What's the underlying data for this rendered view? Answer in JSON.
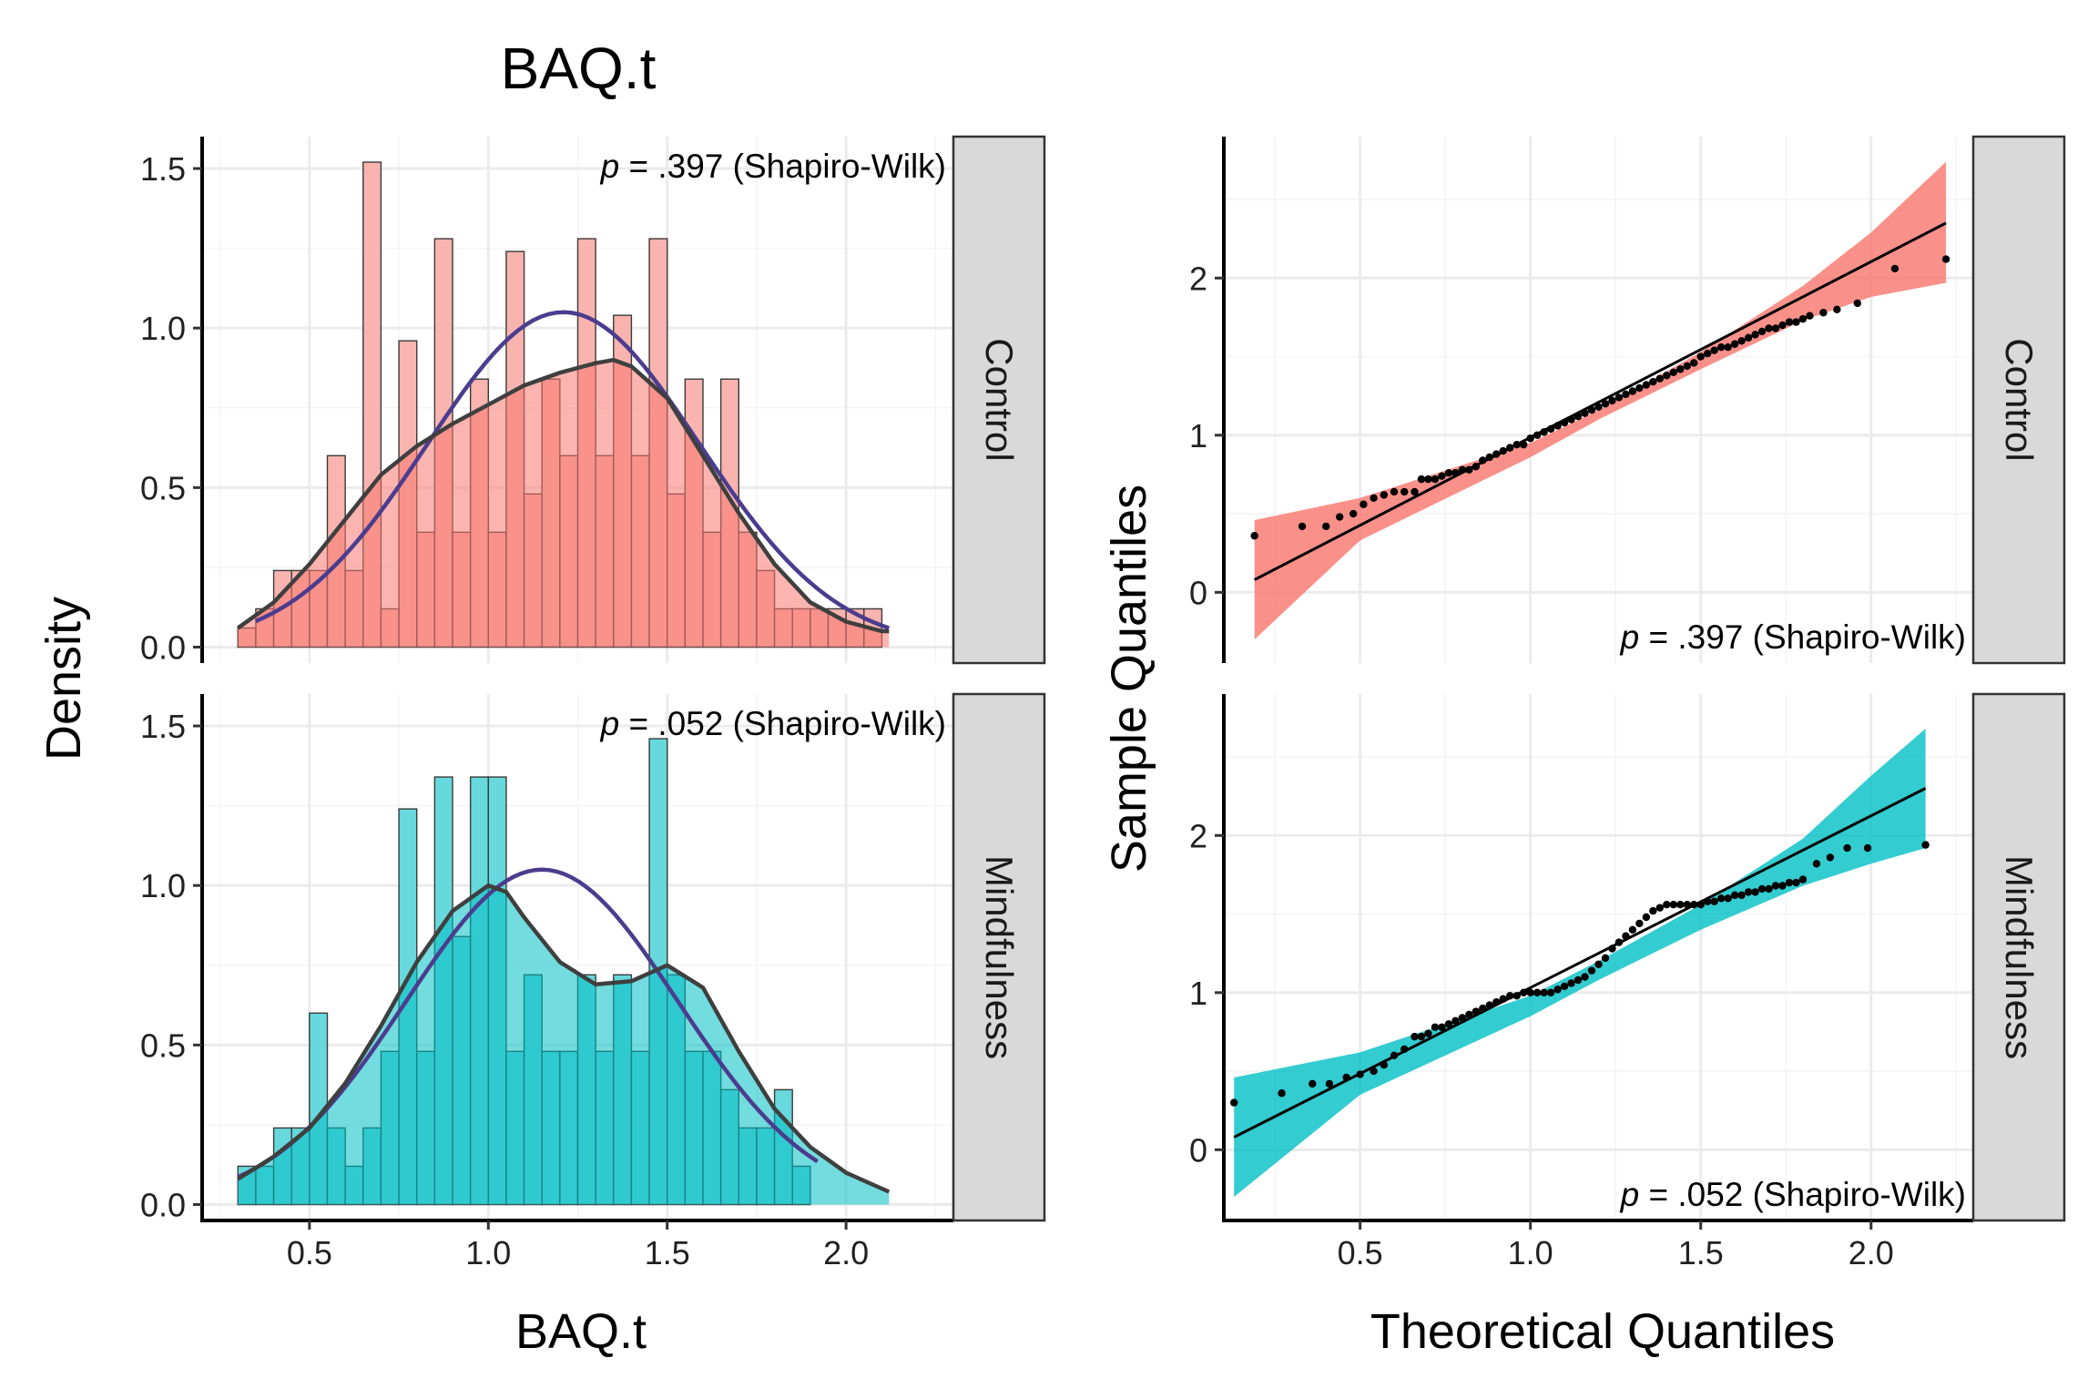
{
  "figure": {
    "title": "BAQ.t",
    "histogram_xlabel": "BAQ.t",
    "histogram_ylabel": "Density",
    "qq_xlabel": "Theoretical Quantiles",
    "qq_ylabel": "Sample Quantiles"
  },
  "colors": {
    "control_fill": "#F8766D",
    "control_fill_light": "#F9B0AB",
    "mindfulness_fill": "#00BFC4",
    "mindfulness_fill_light": "#5FD6D9",
    "normal_curve": "#4B3C8E",
    "density_curve": "#3F3F3F",
    "strip_bg": "#D9D9D9"
  },
  "chart_data": [
    {
      "type": "bar",
      "panel": "histogram",
      "group": "Control",
      "strip_label": "Control",
      "annotation": {
        "p_symbol": "p",
        "text": " = .397 (Shapiro-Wilk)"
      },
      "xlim": [
        0.2,
        2.3
      ],
      "ylim": [
        -0.05,
        1.6
      ],
      "x_ticks": [
        0.5,
        1.0,
        1.5,
        2.0
      ],
      "x_tick_labels": [
        "0.5",
        "1.0",
        "1.5",
        "2.0"
      ],
      "y_ticks": [
        0.0,
        0.5,
        1.0,
        1.5
      ],
      "y_tick_labels": [
        "0.0",
        "0.5",
        "1.0",
        "1.5"
      ],
      "bin_width": 0.05,
      "bins_start": 0.3,
      "heights": [
        0.06,
        0.12,
        0.24,
        0.24,
        0.24,
        0.6,
        0.24,
        1.52,
        0.12,
        0.96,
        0.36,
        1.28,
        0.36,
        0.84,
        0.36,
        1.24,
        0.48,
        0.84,
        0.6,
        1.28,
        0.6,
        1.04,
        0.6,
        1.28,
        0.48,
        0.84,
        0.36,
        0.84,
        0.36,
        0.24,
        0.12,
        0.12,
        0.12,
        0.12,
        0.12,
        0.12
      ],
      "normal_curve": {
        "mean": 1.21,
        "sd": 0.38,
        "from": 0.35,
        "to": 2.12
      },
      "density_curve": {
        "x": [
          0.3,
          0.4,
          0.5,
          0.6,
          0.7,
          0.8,
          0.9,
          1.0,
          1.1,
          1.2,
          1.3,
          1.35,
          1.4,
          1.5,
          1.6,
          1.7,
          1.8,
          1.9,
          2.0,
          2.1,
          2.12
        ],
        "y": [
          0.06,
          0.14,
          0.26,
          0.4,
          0.54,
          0.63,
          0.7,
          0.76,
          0.82,
          0.86,
          0.89,
          0.9,
          0.88,
          0.78,
          0.6,
          0.42,
          0.26,
          0.14,
          0.08,
          0.05,
          0.05
        ]
      }
    },
    {
      "type": "bar",
      "panel": "histogram",
      "group": "Mindfulness",
      "strip_label": "Mindfulness",
      "annotation": {
        "p_symbol": "p",
        "text": " = .052 (Shapiro-Wilk)"
      },
      "xlim": [
        0.2,
        2.3
      ],
      "ylim": [
        -0.05,
        1.6
      ],
      "x_ticks": [
        0.5,
        1.0,
        1.5,
        2.0
      ],
      "x_tick_labels": [
        "0.5",
        "1.0",
        "1.5",
        "2.0"
      ],
      "y_ticks": [
        0.0,
        0.5,
        1.0,
        1.5
      ],
      "y_tick_labels": [
        "0.0",
        "0.5",
        "1.0",
        "1.5"
      ],
      "bin_width": 0.05,
      "bins_start": 0.3,
      "heights": [
        0.12,
        0.12,
        0.24,
        0.24,
        0.6,
        0.24,
        0.12,
        0.24,
        0.48,
        1.24,
        0.48,
        1.34,
        0.84,
        1.34,
        1.34,
        0.48,
        0.72,
        0.48,
        0.48,
        0.72,
        0.48,
        0.72,
        0.48,
        1.46,
        0.72,
        0.48,
        0.48,
        0.36,
        0.24,
        0.24,
        0.36,
        0.12
      ],
      "normal_curve": {
        "mean": 1.15,
        "sd": 0.38,
        "from": 0.3,
        "to": 1.92
      },
      "density_curve": {
        "x": [
          0.3,
          0.4,
          0.5,
          0.6,
          0.7,
          0.8,
          0.9,
          1.0,
          1.05,
          1.1,
          1.2,
          1.3,
          1.4,
          1.5,
          1.6,
          1.7,
          1.8,
          1.9,
          2.0,
          2.1,
          2.12
        ],
        "y": [
          0.08,
          0.15,
          0.24,
          0.38,
          0.56,
          0.76,
          0.92,
          1.0,
          0.98,
          0.9,
          0.76,
          0.69,
          0.7,
          0.75,
          0.68,
          0.48,
          0.3,
          0.18,
          0.1,
          0.05,
          0.04
        ]
      }
    },
    {
      "type": "scatter",
      "panel": "qq",
      "group": "Control",
      "strip_label": "Control",
      "annotation": {
        "p_symbol": "p",
        "text": " = .397 (Shapiro-Wilk)"
      },
      "xlim": [
        0.1,
        2.3
      ],
      "ylim": [
        -0.45,
        2.9
      ],
      "x_ticks": [
        0.5,
        1.0,
        1.5,
        2.0
      ],
      "x_tick_labels": [
        "0.5",
        "1.0",
        "1.5",
        "2.0"
      ],
      "y_ticks": [
        0,
        1,
        2
      ],
      "y_tick_labels": [
        "0",
        "1",
        "2"
      ],
      "line": {
        "x": [
          0.19,
          2.22
        ],
        "y": [
          0.08,
          2.35
        ]
      },
      "band": {
        "x": [
          0.19,
          0.5,
          1.0,
          1.2,
          1.5,
          1.8,
          2.0,
          2.22
        ],
        "lower": [
          -0.3,
          0.33,
          0.86,
          1.1,
          1.42,
          1.73,
          1.88,
          1.97
        ],
        "upper": [
          0.46,
          0.6,
          0.95,
          1.16,
          1.53,
          1.95,
          2.29,
          2.74
        ]
      },
      "points_x": [
        0.19,
        0.33,
        0.4,
        0.44,
        0.48,
        0.51,
        0.54,
        0.57,
        0.6,
        0.63,
        0.66,
        0.68,
        0.7,
        0.72,
        0.74,
        0.76,
        0.78,
        0.8,
        0.82,
        0.84,
        0.86,
        0.88,
        0.9,
        0.92,
        0.94,
        0.96,
        0.98,
        1.0,
        1.02,
        1.04,
        1.06,
        1.08,
        1.1,
        1.12,
        1.14,
        1.16,
        1.18,
        1.2,
        1.22,
        1.24,
        1.26,
        1.28,
        1.3,
        1.32,
        1.34,
        1.36,
        1.38,
        1.4,
        1.42,
        1.44,
        1.46,
        1.48,
        1.5,
        1.52,
        1.54,
        1.56,
        1.58,
        1.6,
        1.62,
        1.64,
        1.66,
        1.68,
        1.7,
        1.72,
        1.74,
        1.76,
        1.78,
        1.8,
        1.82,
        1.86,
        1.9,
        1.96,
        2.07,
        2.22
      ],
      "points_y": [
        0.36,
        0.42,
        0.42,
        0.48,
        0.5,
        0.56,
        0.6,
        0.62,
        0.64,
        0.64,
        0.64,
        0.72,
        0.72,
        0.72,
        0.74,
        0.76,
        0.76,
        0.78,
        0.78,
        0.8,
        0.84,
        0.86,
        0.88,
        0.9,
        0.92,
        0.94,
        0.94,
        0.98,
        1.0,
        1.02,
        1.04,
        1.06,
        1.08,
        1.1,
        1.12,
        1.14,
        1.16,
        1.18,
        1.2,
        1.22,
        1.24,
        1.26,
        1.28,
        1.3,
        1.32,
        1.34,
        1.36,
        1.38,
        1.4,
        1.42,
        1.44,
        1.46,
        1.5,
        1.52,
        1.54,
        1.56,
        1.56,
        1.58,
        1.6,
        1.62,
        1.64,
        1.66,
        1.68,
        1.68,
        1.7,
        1.72,
        1.72,
        1.74,
        1.76,
        1.78,
        1.8,
        1.84,
        2.06,
        2.12
      ]
    },
    {
      "type": "scatter",
      "panel": "qq",
      "group": "Mindfulness",
      "strip_label": "Mindfulness",
      "annotation": {
        "p_symbol": "p",
        "text": " = .052 (Shapiro-Wilk)"
      },
      "xlim": [
        0.1,
        2.3
      ],
      "ylim": [
        -0.45,
        2.9
      ],
      "x_ticks": [
        0.5,
        1.0,
        1.5,
        2.0
      ],
      "x_tick_labels": [
        "0.5",
        "1.0",
        "1.5",
        "2.0"
      ],
      "y_ticks": [
        0,
        1,
        2
      ],
      "y_tick_labels": [
        "0",
        "1",
        "2"
      ],
      "line": {
        "x": [
          0.13,
          2.16
        ],
        "y": [
          0.08,
          2.3
        ]
      },
      "band": {
        "x": [
          0.13,
          0.5,
          1.0,
          1.2,
          1.5,
          1.8,
          2.0,
          2.16
        ],
        "lower": [
          -0.3,
          0.35,
          0.85,
          1.08,
          1.4,
          1.68,
          1.82,
          1.92
        ],
        "upper": [
          0.46,
          0.62,
          0.98,
          1.2,
          1.56,
          1.98,
          2.38,
          2.68
        ]
      },
      "points_x": [
        0.13,
        0.27,
        0.36,
        0.41,
        0.46,
        0.5,
        0.54,
        0.57,
        0.6,
        0.63,
        0.66,
        0.68,
        0.7,
        0.72,
        0.74,
        0.76,
        0.78,
        0.8,
        0.82,
        0.84,
        0.86,
        0.88,
        0.9,
        0.92,
        0.94,
        0.96,
        0.98,
        1.0,
        1.02,
        1.04,
        1.06,
        1.08,
        1.1,
        1.12,
        1.14,
        1.16,
        1.18,
        1.2,
        1.22,
        1.24,
        1.26,
        1.28,
        1.3,
        1.32,
        1.34,
        1.36,
        1.38,
        1.4,
        1.42,
        1.44,
        1.46,
        1.48,
        1.5,
        1.52,
        1.54,
        1.56,
        1.58,
        1.6,
        1.62,
        1.64,
        1.66,
        1.68,
        1.7,
        1.72,
        1.74,
        1.76,
        1.78,
        1.8,
        1.84,
        1.88,
        1.93,
        1.99,
        2.16
      ],
      "points_y": [
        0.3,
        0.36,
        0.42,
        0.42,
        0.46,
        0.48,
        0.5,
        0.54,
        0.6,
        0.64,
        0.72,
        0.72,
        0.74,
        0.78,
        0.78,
        0.8,
        0.82,
        0.84,
        0.86,
        0.88,
        0.9,
        0.92,
        0.94,
        0.96,
        0.98,
        0.98,
        1.0,
        1.0,
        1.0,
        1.0,
        1.0,
        1.02,
        1.04,
        1.06,
        1.08,
        1.1,
        1.14,
        1.18,
        1.22,
        1.28,
        1.32,
        1.36,
        1.4,
        1.44,
        1.48,
        1.52,
        1.54,
        1.56,
        1.56,
        1.56,
        1.56,
        1.56,
        1.56,
        1.58,
        1.58,
        1.6,
        1.6,
        1.62,
        1.62,
        1.64,
        1.64,
        1.66,
        1.66,
        1.68,
        1.68,
        1.7,
        1.7,
        1.72,
        1.82,
        1.86,
        1.92,
        1.92,
        1.94
      ]
    }
  ]
}
